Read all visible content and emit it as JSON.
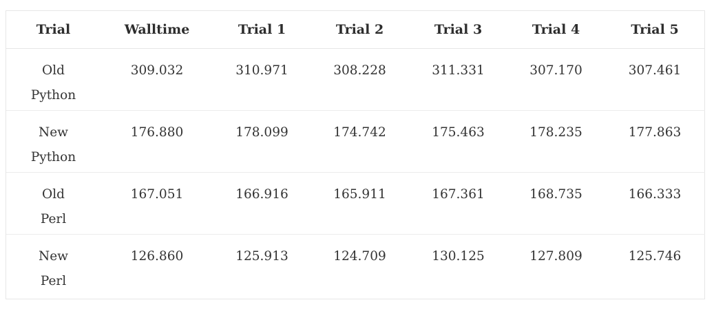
{
  "table": {
    "headers": [
      "Trial",
      "Walltime",
      "Trial 1",
      "Trial 2",
      "Trial 3",
      "Trial 4",
      "Trial 5"
    ],
    "rows": [
      {
        "name_line1": "Old",
        "name_line2": "Python",
        "values": [
          "309.032",
          "310.971",
          "308.228",
          "311.331",
          "307.170",
          "307.461"
        ]
      },
      {
        "name_line1": "New",
        "name_line2": "Python",
        "values": [
          "176.880",
          "178.099",
          "174.742",
          "175.463",
          "178.235",
          "177.863"
        ]
      },
      {
        "name_line1": "Old",
        "name_line2": "Perl",
        "values": [
          "167.051",
          "166.916",
          "165.911",
          "167.361",
          "168.735",
          "166.333"
        ]
      },
      {
        "name_line1": "New",
        "name_line2": "Perl",
        "values": [
          "126.860",
          "125.913",
          "124.709",
          "130.125",
          "127.809",
          "125.746"
        ]
      }
    ]
  }
}
